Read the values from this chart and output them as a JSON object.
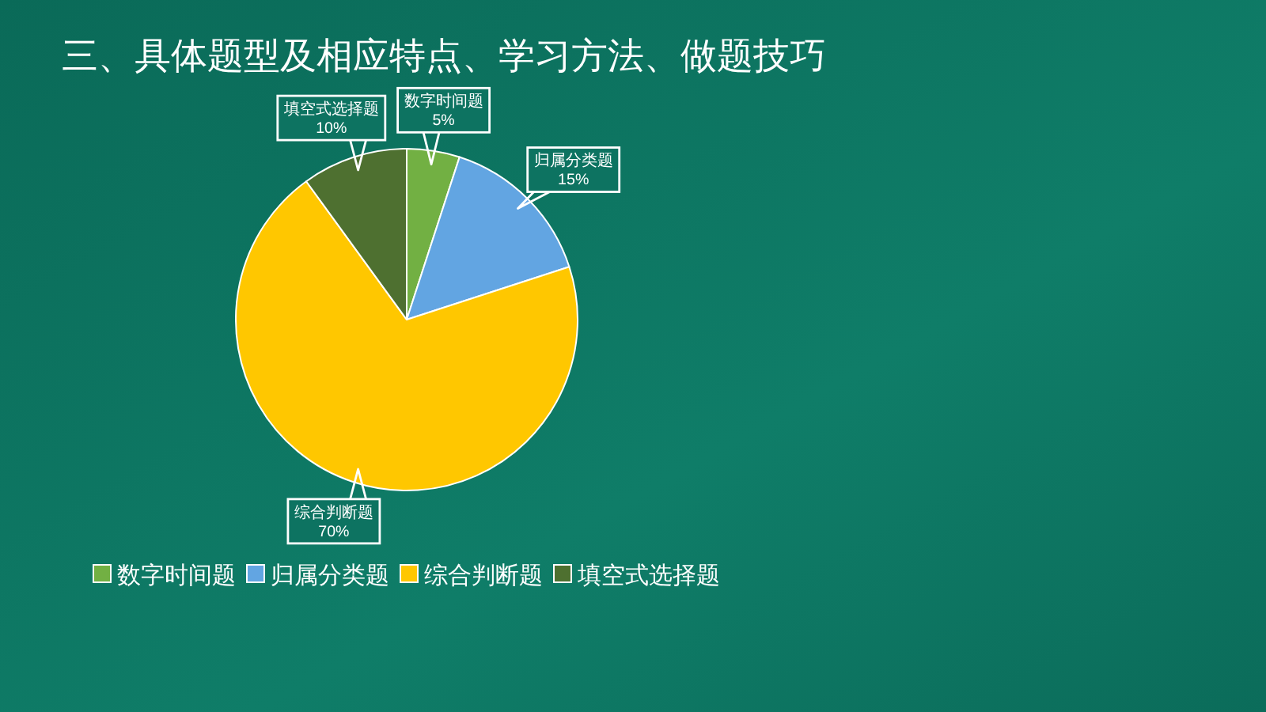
{
  "chart_data": {
    "type": "pie",
    "title": "三、具体题型及相应特点、学习方法、做题技巧",
    "categories": [
      "数字时间题",
      "归属分类题",
      "综合判断题",
      "填空式选择题"
    ],
    "values": [
      5,
      15,
      70,
      10
    ],
    "value_labels": [
      "5%",
      "15%",
      "70%",
      "10%"
    ],
    "colors": [
      "#72b043",
      "#62a5e2",
      "#ffc700",
      "#4e7030"
    ],
    "legend": "bottom"
  }
}
